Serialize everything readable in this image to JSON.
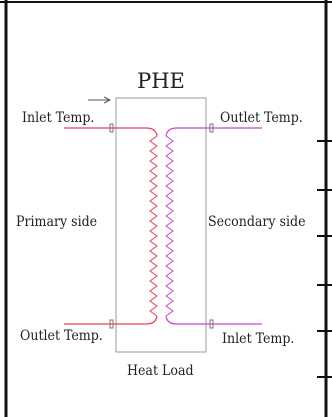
{
  "title": "PHE",
  "labels": {
    "inlet_primary": "Inlet Temp.",
    "outlet_primary": "Outlet Temp.",
    "outlet_secondary": "Outlet Temp.",
    "inlet_secondary": "Inlet Temp.",
    "primary_side": "Primary side",
    "secondary_side": "Secondary side",
    "heat_load": "Heat Load"
  },
  "colors": {
    "primary_line": "#e8405a",
    "secondary_line": "#d040d0",
    "frame": "#111111",
    "box": "#9a9a9a",
    "text": "#222222"
  }
}
